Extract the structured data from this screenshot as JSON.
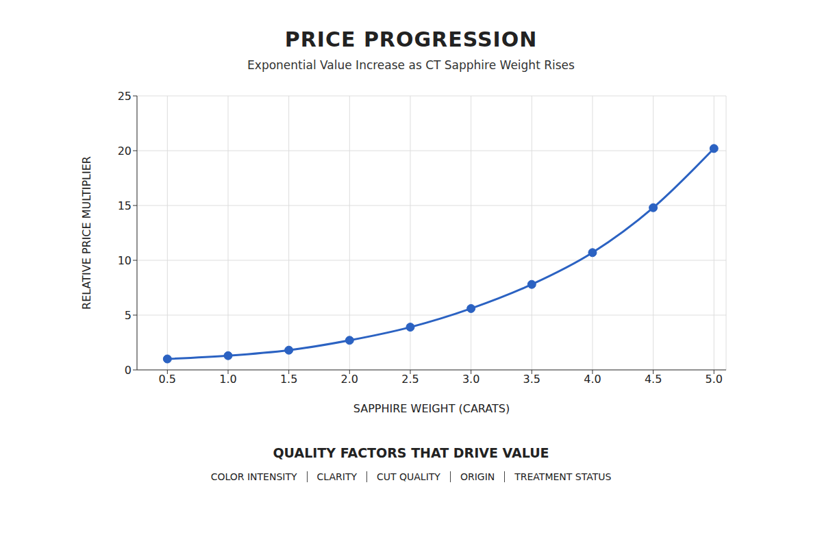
{
  "chart_data": {
    "type": "line",
    "title": "PRICE PROGRESSION",
    "subtitle": "Exponential Value Increase as CT Sapphire Weight Rises",
    "x_label": "SAPPHIRE WEIGHT (CARATS)",
    "y_label": "RELATIVE PRICE MULTIPLIER",
    "x": [
      0.5,
      1.0,
      1.5,
      2.0,
      2.5,
      3.0,
      3.5,
      4.0,
      4.5,
      5.0
    ],
    "values": [
      1.0,
      1.3,
      1.8,
      2.7,
      3.9,
      5.6,
      7.8,
      10.7,
      14.8,
      20.2
    ],
    "color": "#2b62c2",
    "marker": "o",
    "line_style": "solid",
    "xlim": [
      0.25,
      5.1
    ],
    "xticks": [
      0.5,
      {
        "value": 1,
        "label": "1.0"
      },
      1.5,
      {
        "value": 2,
        "label": "2.0"
      },
      2.5,
      {
        "value": 3,
        "label": "3.0"
      },
      3.5,
      {
        "value": 4,
        "label": "4.0"
      },
      4.5,
      {
        "value": 5,
        "label": "5.0"
      }
    ],
    "ylim": [
      0,
      25
    ],
    "yticks": [
      0,
      5,
      10,
      15,
      20,
      25
    ],
    "grid": true
  },
  "footer": {
    "title": "QUALITY FACTORS THAT DRIVE VALUE",
    "items": [
      "COLOR INTENSITY",
      "CLARITY",
      "CUT QUALITY",
      "ORIGIN",
      "TREATMENT STATUS"
    ]
  }
}
